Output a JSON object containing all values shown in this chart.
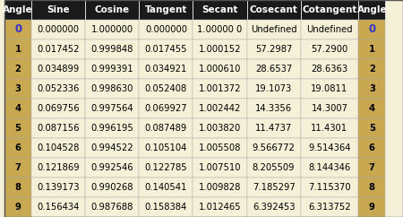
{
  "headers": [
    "Angle",
    "Sine",
    "Cosine",
    "Tangent",
    "Secant",
    "Cosecant",
    "Cotangent",
    "Angle"
  ],
  "rows": [
    [
      "0",
      "0.000000",
      "1.000000",
      "0.000000",
      "1.00000 0",
      "Undefined",
      "Undefined",
      "0"
    ],
    [
      "1",
      "0.017452",
      "0.999848",
      "0.017455",
      "1.000152",
      "57.2987",
      "57.2900",
      "1"
    ],
    [
      "2",
      "0.034899",
      "0.999391",
      "0.034921",
      "1.000610",
      "28.6537",
      "28.6363",
      "2"
    ],
    [
      "3",
      "0.052336",
      "0.998630",
      "0.052408",
      "1.001372",
      "19.1073",
      "19.0811",
      "3"
    ],
    [
      "4",
      "0.069756",
      "0.997564",
      "0.069927",
      "1.002442",
      "14.3356",
      "14.3007",
      "4"
    ],
    [
      "5",
      "0.087156",
      "0.996195",
      "0.087489",
      "1.003820",
      "11.4737",
      "11.4301",
      "5"
    ],
    [
      "6",
      "0.104528",
      "0.994522",
      "0.105104",
      "1.005508",
      "9.566772",
      "9.514364",
      "6"
    ],
    [
      "7",
      "0.121869",
      "0.992546",
      "0.122785",
      "1.007510",
      "8.205509",
      "8.144346",
      "7"
    ],
    [
      "8",
      "0.139173",
      "0.990268",
      "0.140541",
      "1.009828",
      "7.185297",
      "7.115370",
      "8"
    ],
    [
      "9",
      "0.156434",
      "0.987688",
      "0.158384",
      "1.012465",
      "6.392453",
      "6.313752",
      "9"
    ]
  ],
  "header_bg": "#1a1a1a",
  "header_fg": "#ffffff",
  "angle_col_bg": "#c8a850",
  "angle_col_fg": "#000000",
  "row_bg_even": "#f5f0d8",
  "row_bg_odd": "#f5f0d8",
  "table_bg": "#f5f0d8",
  "border_color": "#888888",
  "angle_0_color": "#3333cc",
  "figsize": [
    4.5,
    2.42
  ],
  "dpi": 100
}
